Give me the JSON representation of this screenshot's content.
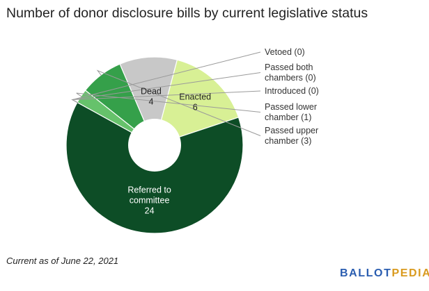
{
  "title": "Number of donor disclosure bills by current legislative status",
  "footnote": "Current as of June 22, 2021",
  "logo": {
    "part1": "BALLOT",
    "part2": "PEDIA",
    "color1": "#2a5db0",
    "color2": "#d99a1e"
  },
  "chart_data": {
    "type": "pie",
    "donut": true,
    "title": "Number of donor disclosure bills by current legislative status",
    "slices": [
      {
        "label": "Vetoed",
        "value": 0,
        "color": "#1a5c2a"
      },
      {
        "label": "Passed both chambers",
        "value": 0,
        "color": "#1f6b30"
      },
      {
        "label": "Introduced",
        "value": 0,
        "color": "#2d8a40"
      },
      {
        "label": "Passed lower chamber",
        "value": 1,
        "color": "#66c26b"
      },
      {
        "label": "Passed upper chamber",
        "value": 3,
        "color": "#35a04a"
      },
      {
        "label": "Dead",
        "value": 4,
        "color": "#c8c8c8"
      },
      {
        "label": "Enacted",
        "value": 6,
        "color": "#d8f095"
      },
      {
        "label": "Referred to committee",
        "value": 24,
        "color": "#0d4d26"
      }
    ],
    "labels": {
      "inside": [
        {
          "slice": "Referred to committee",
          "lines": [
            "Referred to",
            "committee",
            "24"
          ],
          "color": "#ffffff"
        },
        {
          "slice": "Dead",
          "lines": [
            "Dead",
            "4"
          ],
          "color": "#222222"
        },
        {
          "slice": "Enacted",
          "lines": [
            "Enacted",
            "6"
          ],
          "color": "#222222"
        }
      ],
      "outside": [
        {
          "slice": "Vetoed",
          "lines": [
            "Vetoed (0)"
          ]
        },
        {
          "slice": "Passed both chambers",
          "lines": [
            "Passed both",
            "chambers (0)"
          ]
        },
        {
          "slice": "Introduced",
          "lines": [
            "Introduced (0)"
          ]
        },
        {
          "slice": "Passed lower chamber",
          "lines": [
            "Passed lower",
            "chamber (1)"
          ]
        },
        {
          "slice": "Passed upper chamber",
          "lines": [
            "Passed upper",
            "chamber (3)"
          ]
        }
      ]
    }
  }
}
